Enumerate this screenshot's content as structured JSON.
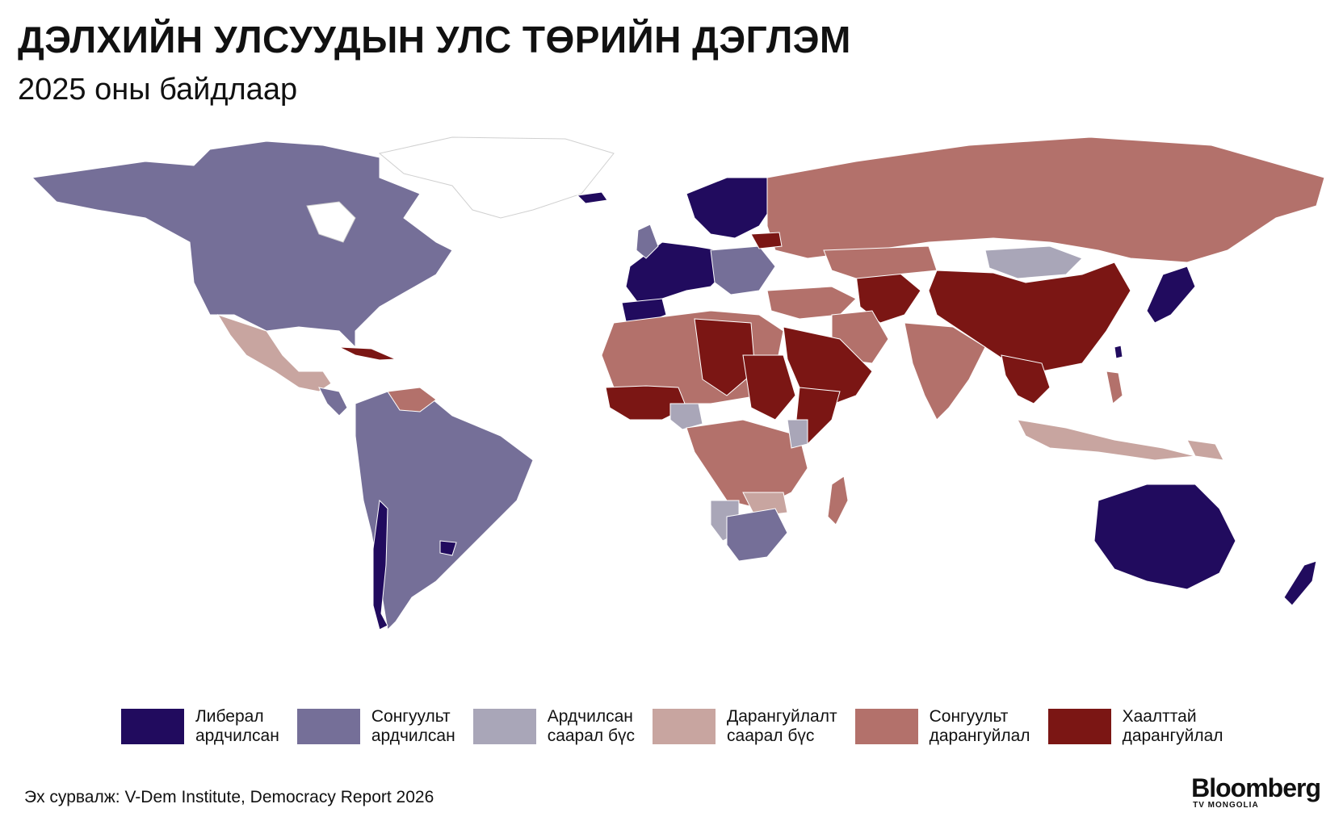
{
  "header": {
    "title": "ДЭЛХИЙН УЛСУУДЫН УЛС ТӨРИЙН ДЭГЛЭМ",
    "subtitle": "2025 оны байдлаар"
  },
  "colors": {
    "liberal_democracy": "#210b5e",
    "electoral_democracy": "#756f98",
    "democratic_grey_zone": "#a9a6b8",
    "autocratic_grey_zone": "#c8a5a0",
    "electoral_autocracy": "#b3716b",
    "closed_autocracy": "#7b1614",
    "no_data": "#ffffff",
    "border": "#ffffff",
    "outline": "#d0d0d0"
  },
  "legend": [
    {
      "label": "Либерал\nардчилсан",
      "color_key": "liberal_democracy"
    },
    {
      "label": "Сонгуульт\nардчилсан",
      "color_key": "electoral_democracy"
    },
    {
      "label": "Ардчилсан\nсаарал бүс",
      "color_key": "democratic_grey_zone"
    },
    {
      "label": "Дарангуйлалт\nсаарал бүс",
      "color_key": "autocratic_grey_zone"
    },
    {
      "label": "Сонгуульт\nдарангуйлал",
      "color_key": "electoral_autocracy"
    },
    {
      "label": "Хаалттай\nдарангуйлал",
      "color_key": "closed_autocracy"
    }
  ],
  "source": "Эх сурвалж: V-Dem Institute, Democracy Report 2026",
  "brand": {
    "name": "Bloomberg",
    "sub": "TV MONGOLIA"
  }
}
